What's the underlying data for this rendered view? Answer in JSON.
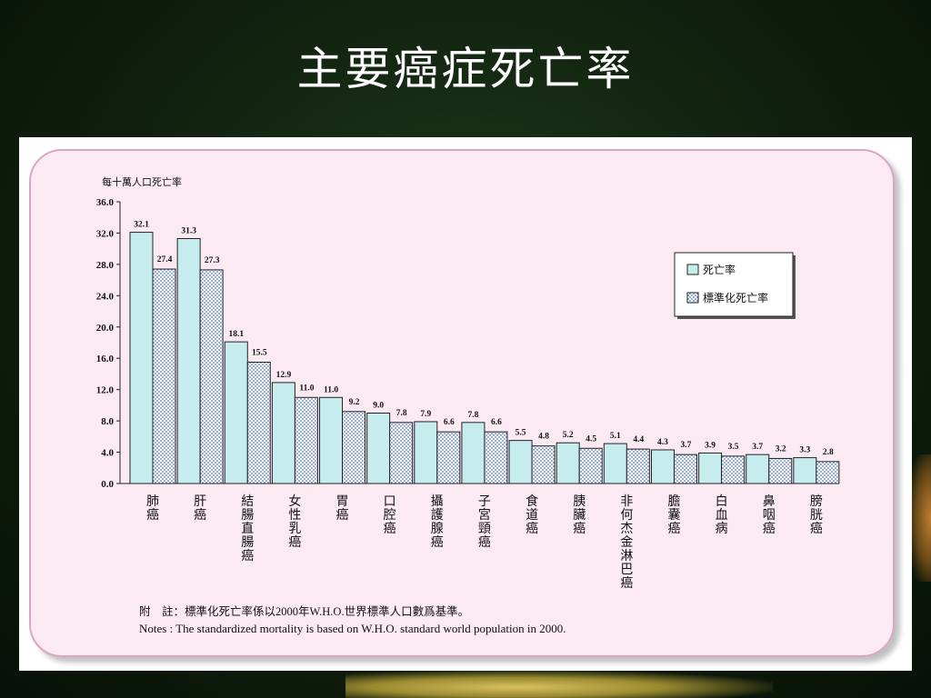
{
  "slide": {
    "title": "主要癌症死亡率"
  },
  "chart_data": {
    "type": "bar",
    "ylabel": "每十萬人口死亡率",
    "ylim": [
      0,
      36
    ],
    "yticks": [
      "0.0",
      "4.0",
      "8.0",
      "12.0",
      "16.0",
      "20.0",
      "24.0",
      "28.0",
      "32.0",
      "36.0"
    ],
    "categories": [
      "肺癌",
      "肝癌",
      "結腸直腸癌",
      "女性乳癌",
      "胃癌",
      "口腔癌",
      "攝護腺癌",
      "子宮頸癌",
      "食道癌",
      "胰臟癌",
      "非何杰金淋巴癌",
      "膽囊癌",
      "白血病",
      "鼻咽癌",
      "膀胱癌"
    ],
    "series": [
      {
        "name": "死亡率",
        "color": "#c6ecee",
        "pattern": "solid",
        "values": [
          32.1,
          31.3,
          18.1,
          12.9,
          11.0,
          9.0,
          7.9,
          7.8,
          5.5,
          5.2,
          5.1,
          4.3,
          3.9,
          3.7,
          3.3
        ],
        "labels": [
          "32.1",
          "31.3",
          "18.1",
          "12.9",
          "11.0",
          "9.0",
          "7.9",
          "7.8",
          "5.5",
          "5.2",
          "5.1",
          "4.3",
          "3.9",
          "3.7",
          "3.3"
        ]
      },
      {
        "name": "標準化死亡率",
        "color": "#6f8fc8",
        "pattern": "dotted",
        "values": [
          27.4,
          27.3,
          15.5,
          11.0,
          9.2,
          7.8,
          6.6,
          6.6,
          4.8,
          4.5,
          4.4,
          3.7,
          3.5,
          3.2,
          2.8
        ],
        "labels": [
          "27.4",
          "27.3",
          "15.5",
          "11.0",
          "9.2",
          "7.8",
          "6.6",
          "6.6",
          "4.8",
          "4.5",
          "4.4",
          "3.7",
          "3.5",
          "3.2",
          "2.8"
        ]
      }
    ],
    "legend": "top-right",
    "grid": false
  },
  "notes": {
    "zh": "附　註：標準化死亡率係以2000年W.H.O.世界標準人口數爲基準。",
    "en": "Notes : The standardized mortality is based on W.H.O. standard world population in 2000."
  }
}
